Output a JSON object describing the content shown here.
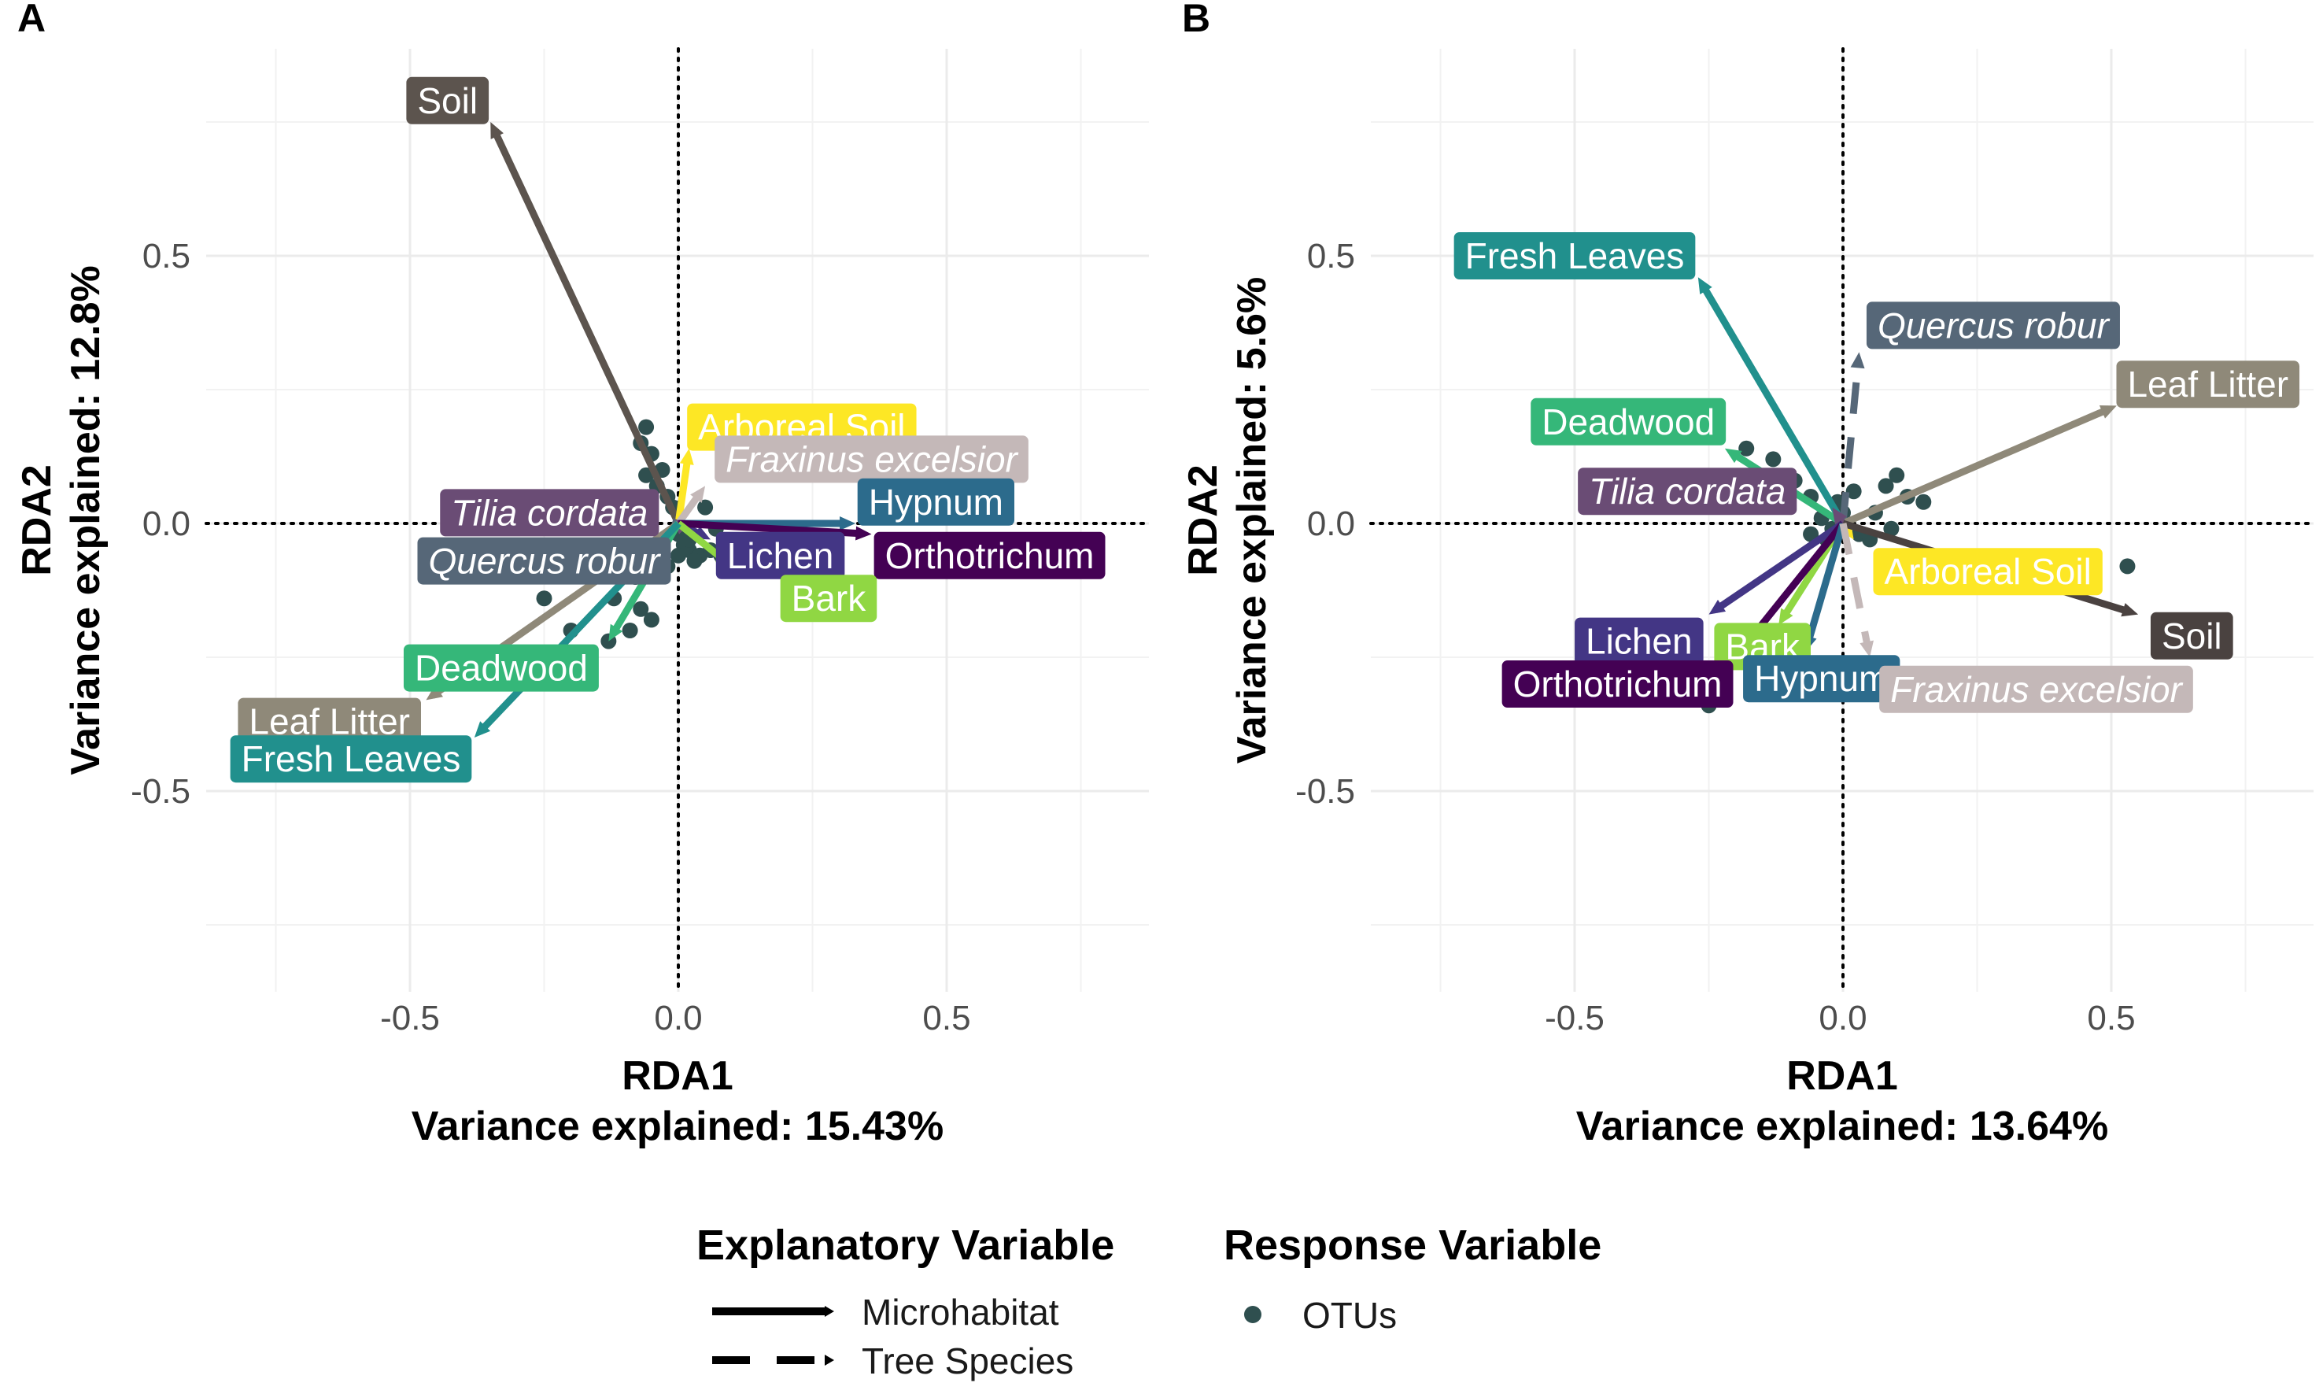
{
  "chart_data": [
    {
      "type": "scatter",
      "panel_label": "A",
      "xlabel": "RDA1",
      "xlabel_sub": "Variance explained: 15.43%",
      "ylabel": "RDA2",
      "ylabel_sub": "Variance explained: 12.8%",
      "xlim": [
        -0.75,
        0.88
      ],
      "ylim": [
        -0.82,
        0.88
      ],
      "xticks": [
        -0.5,
        0.0,
        0.5
      ],
      "yticks": [
        -0.5,
        0.0,
        0.5
      ],
      "xtick_labels": [
        "-0.5",
        "0.0",
        "0.5"
      ],
      "ytick_labels": [
        "-0.5",
        "0.0",
        "0.5"
      ],
      "grid": true,
      "vectors": [
        {
          "name": "Soil",
          "group": "Microhabitat",
          "x": -0.35,
          "y": 0.75,
          "color": "#5c544e",
          "label_x": -0.43,
          "label_y": 0.79,
          "italic": false
        },
        {
          "name": "Arboreal Soil",
          "group": "Microhabitat",
          "x": 0.02,
          "y": 0.14,
          "color": "#fde725",
          "label_x": 0.23,
          "label_y": 0.18,
          "italic": false
        },
        {
          "name": "Fraxinus excelsior",
          "group": "Tree Species",
          "x": 0.05,
          "y": 0.07,
          "color": "#c4b8b8",
          "label_x": 0.36,
          "label_y": 0.12,
          "italic": true
        },
        {
          "name": "Hypnum",
          "group": "Microhabitat",
          "x": 0.33,
          "y": 0.0,
          "color": "#2c6b8c",
          "label_x": 0.48,
          "label_y": 0.04,
          "italic": false
        },
        {
          "name": "Tilia cordata",
          "group": "Tree Species",
          "x": -0.01,
          "y": 0.01,
          "color": "#6a4c75",
          "label_x": -0.24,
          "label_y": 0.02,
          "italic": true
        },
        {
          "name": "Quercus robur",
          "group": "Tree Species",
          "x": -0.02,
          "y": -0.02,
          "color": "#566778",
          "label_x": -0.25,
          "label_y": -0.07,
          "italic": true
        },
        {
          "name": "Lichen",
          "group": "Microhabitat",
          "x": 0.06,
          "y": -0.03,
          "color": "#433685",
          "label_x": 0.19,
          "label_y": -0.06,
          "italic": false
        },
        {
          "name": "Orthotrichum",
          "group": "Microhabitat",
          "x": 0.36,
          "y": -0.02,
          "color": "#440154",
          "label_x": 0.58,
          "label_y": -0.06,
          "italic": false
        },
        {
          "name": "Bark",
          "group": "Microhabitat",
          "x": 0.1,
          "y": -0.08,
          "color": "#90d743",
          "label_x": 0.28,
          "label_y": -0.14,
          "italic": false
        },
        {
          "name": "Deadwood",
          "group": "Microhabitat",
          "x": -0.13,
          "y": -0.22,
          "color": "#35b779",
          "label_x": -0.33,
          "label_y": -0.27,
          "italic": false
        },
        {
          "name": "Leaf Litter",
          "group": "Microhabitat",
          "x": -0.47,
          "y": -0.33,
          "color": "#8f8979",
          "label_x": -0.65,
          "label_y": -0.37,
          "italic": false
        },
        {
          "name": "Fresh Leaves",
          "group": "Microhabitat",
          "x": -0.38,
          "y": -0.4,
          "color": "#21908d",
          "label_x": -0.61,
          "label_y": -0.44,
          "italic": false
        }
      ],
      "otus": [
        [
          -0.06,
          0.18
        ],
        [
          -0.07,
          0.15
        ],
        [
          -0.05,
          0.13
        ],
        [
          -0.03,
          0.1
        ],
        [
          -0.04,
          0.07
        ],
        [
          -0.02,
          0.05
        ],
        [
          -0.01,
          0.03
        ],
        [
          0.0,
          -0.02
        ],
        [
          0.01,
          -0.04
        ],
        [
          0.02,
          -0.05
        ],
        [
          0.04,
          -0.06
        ],
        [
          0.06,
          -0.05
        ],
        [
          0.08,
          -0.06
        ],
        [
          0.1,
          -0.05
        ],
        [
          0.12,
          -0.04
        ],
        [
          0.15,
          -0.06
        ],
        [
          0.18,
          -0.05
        ],
        [
          0.22,
          -0.06
        ],
        [
          0.26,
          -0.05
        ],
        [
          -0.02,
          -0.08
        ],
        [
          0.03,
          -0.07
        ],
        [
          -0.08,
          -0.1
        ],
        [
          -0.12,
          -0.14
        ],
        [
          -0.07,
          -0.16
        ],
        [
          -0.05,
          -0.18
        ],
        [
          -0.25,
          -0.14
        ],
        [
          -0.2,
          -0.2
        ],
        [
          -0.13,
          -0.22
        ],
        [
          -0.09,
          -0.2
        ],
        [
          0.0,
          -0.06
        ],
        [
          0.05,
          0.03
        ],
        [
          0.07,
          -0.01
        ],
        [
          -0.06,
          0.09
        ],
        [
          0.02,
          -0.03
        ]
      ]
    },
    {
      "type": "scatter",
      "panel_label": "B",
      "xlabel": "RDA1",
      "xlabel_sub": "Variance explained: 13.64%",
      "ylabel": "RDA2",
      "ylabel_sub": "Variance explained: 5.6%",
      "xlim": [
        -0.75,
        0.88
      ],
      "ylim": [
        -0.82,
        0.88
      ],
      "xticks": [
        -0.5,
        0.0,
        0.5
      ],
      "yticks": [
        -0.5,
        0.0,
        0.5
      ],
      "xtick_labels": [
        "-0.5",
        "0.0",
        "0.5"
      ],
      "ytick_labels": [
        "-0.5",
        "0.0",
        "0.5"
      ],
      "grid": true,
      "vectors": [
        {
          "name": "Fresh Leaves",
          "group": "Microhabitat",
          "x": -0.27,
          "y": 0.46,
          "color": "#21908d",
          "label_x": -0.5,
          "label_y": 0.5,
          "italic": false
        },
        {
          "name": "Quercus robur",
          "group": "Tree Species",
          "x": 0.03,
          "y": 0.32,
          "color": "#566778",
          "label_x": 0.28,
          "label_y": 0.37,
          "italic": true
        },
        {
          "name": "Leaf Litter",
          "group": "Microhabitat",
          "x": 0.51,
          "y": 0.22,
          "color": "#8f8979",
          "label_x": 0.68,
          "label_y": 0.26,
          "italic": false
        },
        {
          "name": "Deadwood",
          "group": "Microhabitat",
          "x": -0.22,
          "y": 0.14,
          "color": "#35b779",
          "label_x": -0.4,
          "label_y": 0.19,
          "italic": false
        },
        {
          "name": "Tilia cordata",
          "group": "Tree Species",
          "x": -0.02,
          "y": 0.03,
          "color": "#6a4c75",
          "label_x": -0.29,
          "label_y": 0.06,
          "italic": true
        },
        {
          "name": "Arboreal Soil",
          "group": "Microhabitat",
          "x": 0.02,
          "y": -0.03,
          "color": "#fde725",
          "label_x": 0.27,
          "label_y": -0.09,
          "italic": false
        },
        {
          "name": "Soil",
          "group": "Microhabitat",
          "x": 0.55,
          "y": -0.17,
          "color": "#4a4240",
          "label_x": 0.65,
          "label_y": -0.21,
          "italic": false
        },
        {
          "name": "Lichen",
          "group": "Microhabitat",
          "x": -0.25,
          "y": -0.17,
          "color": "#433685",
          "label_x": -0.38,
          "label_y": -0.22,
          "italic": false
        },
        {
          "name": "Bark",
          "group": "Microhabitat",
          "x": -0.12,
          "y": -0.19,
          "color": "#90d743",
          "label_x": -0.15,
          "label_y": -0.23,
          "italic": false
        },
        {
          "name": "Orthotrichum",
          "group": "Microhabitat",
          "x": -0.2,
          "y": -0.25,
          "color": "#440154",
          "label_x": -0.42,
          "label_y": -0.3,
          "italic": false
        },
        {
          "name": "Hypnum",
          "group": "Microhabitat",
          "x": -0.07,
          "y": -0.24,
          "color": "#2c6b8c",
          "label_x": -0.04,
          "label_y": -0.29,
          "italic": false
        },
        {
          "name": "Fraxinus excelsior",
          "group": "Tree Species",
          "x": 0.05,
          "y": -0.25,
          "color": "#c4b8b8",
          "label_x": 0.36,
          "label_y": -0.31,
          "italic": true
        }
      ],
      "otus": [
        [
          -0.18,
          0.14
        ],
        [
          -0.13,
          0.12
        ],
        [
          -0.09,
          0.08
        ],
        [
          -0.06,
          0.05
        ],
        [
          0.1,
          0.09
        ],
        [
          0.08,
          0.07
        ],
        [
          0.12,
          0.05
        ],
        [
          0.15,
          0.04
        ],
        [
          0.06,
          0.02
        ],
        [
          -0.04,
          0.01
        ],
        [
          -0.02,
          -0.01
        ],
        [
          0.03,
          -0.02
        ],
        [
          0.05,
          -0.03
        ],
        [
          -0.03,
          -0.03
        ],
        [
          0.53,
          -0.08
        ],
        [
          -0.25,
          -0.34
        ],
        [
          -0.06,
          -0.02
        ],
        [
          0.02,
          0.06
        ],
        [
          0.0,
          0.02
        ],
        [
          0.09,
          -0.01
        ],
        [
          -0.01,
          0.04
        ]
      ]
    }
  ],
  "legend": {
    "explanatory": {
      "title": "Explanatory Variable",
      "items": [
        {
          "label": "Microhabitat",
          "linestyle": "solid"
        },
        {
          "label": "Tree Species",
          "linestyle": "dashed"
        }
      ]
    },
    "response": {
      "title": "Response Variable",
      "items": [
        {
          "label": "OTUs",
          "color": "#2f4f4f"
        }
      ]
    }
  }
}
